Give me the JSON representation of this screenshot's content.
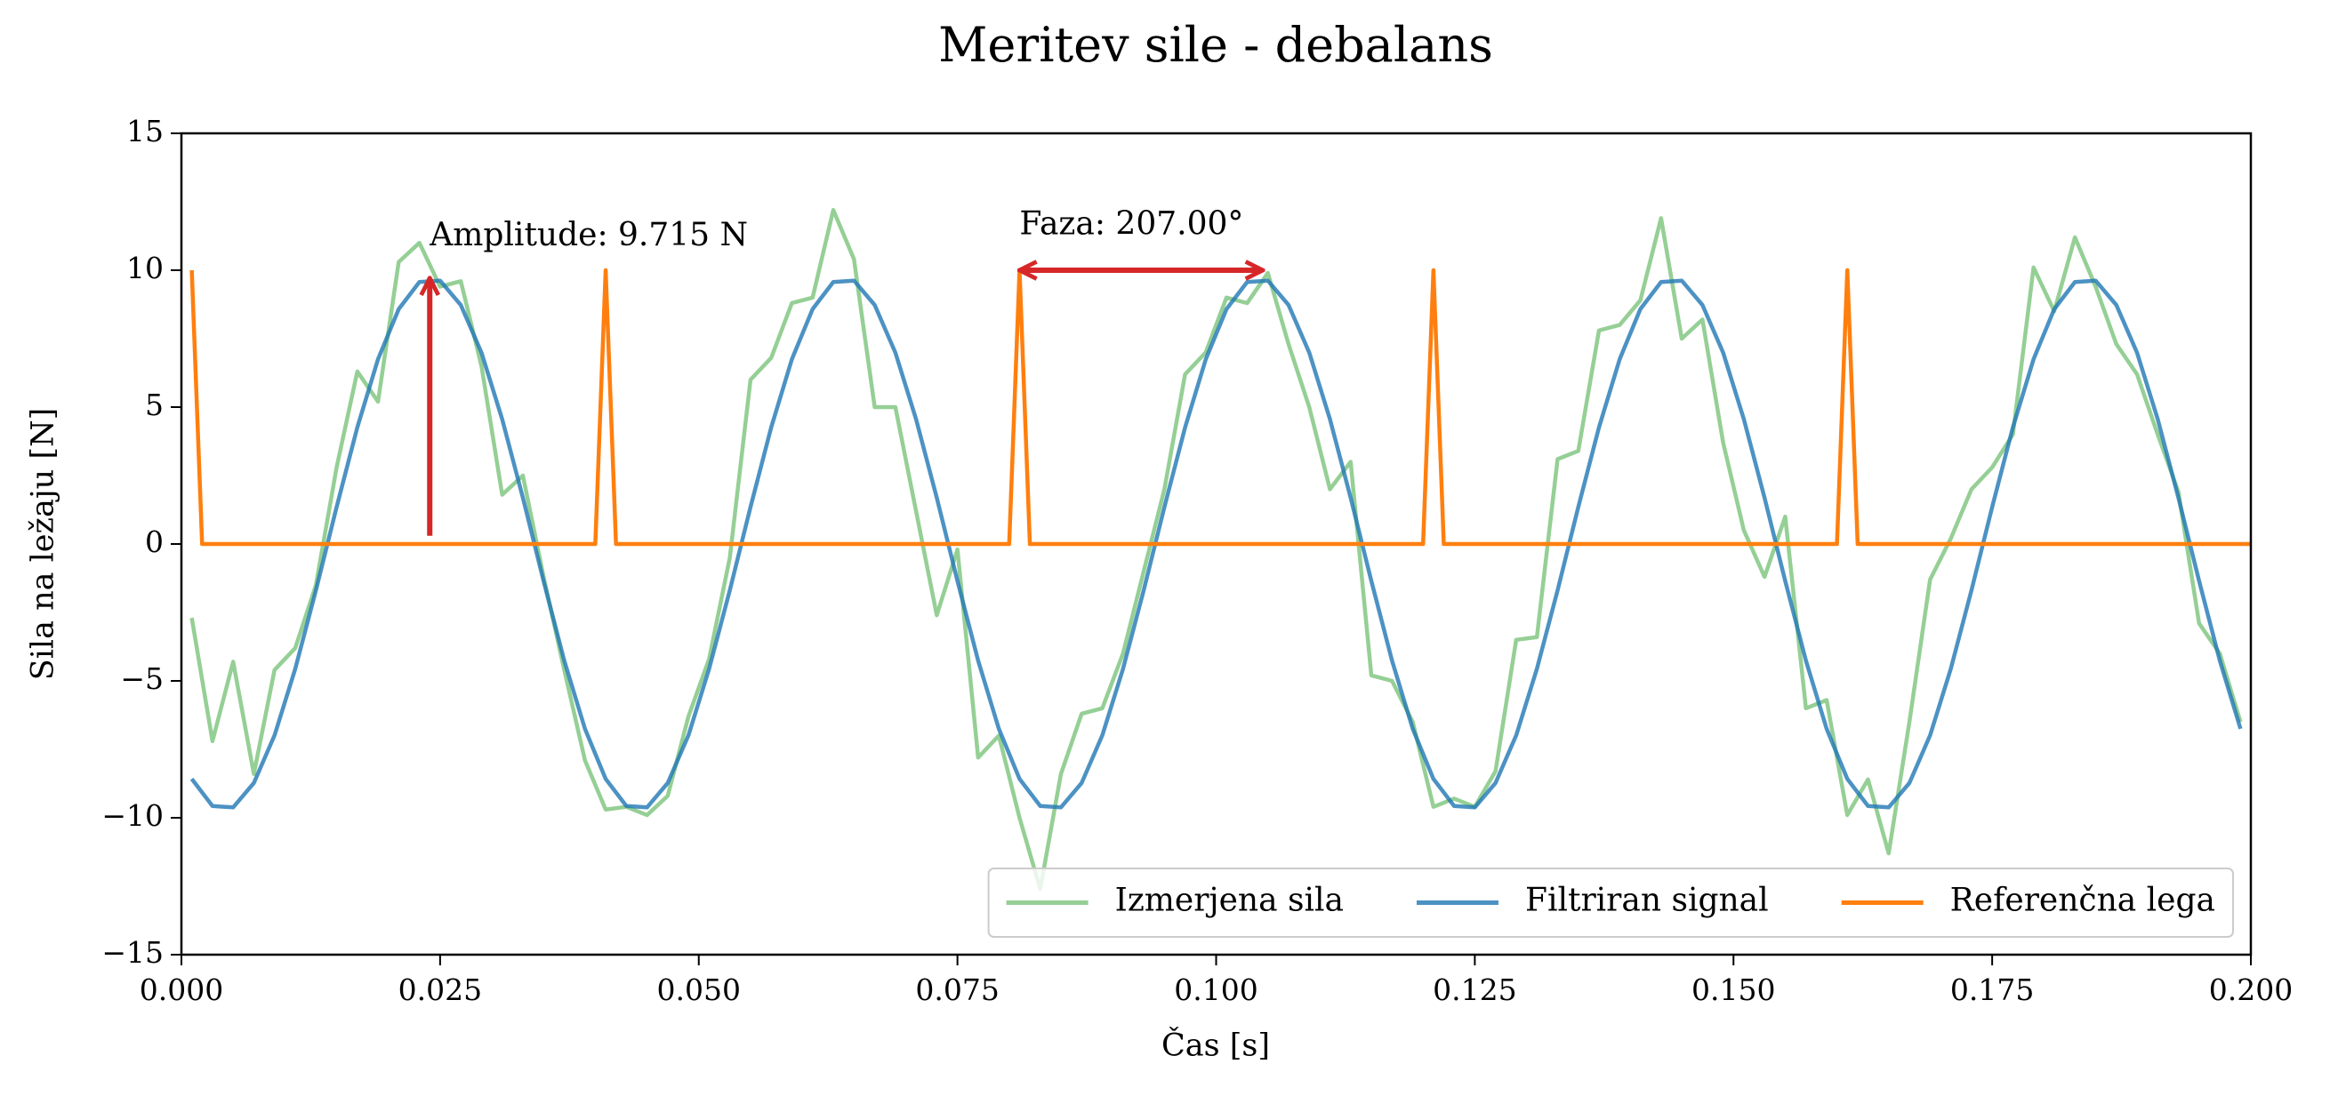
{
  "chart_data": {
    "type": "line",
    "title": "Meritev sile - debalans",
    "xlabel": "Čas [s]",
    "ylabel": "Sila na ležaju [N]",
    "xlim": [
      0,
      0.2
    ],
    "ylim": [
      -15,
      15
    ],
    "xticks": [
      {
        "value": 0,
        "label": "0.000"
      },
      {
        "value": 0.025,
        "label": "0.025"
      },
      {
        "value": 0.05,
        "label": "0.050"
      },
      {
        "value": 0.075,
        "label": "0.075"
      },
      {
        "value": 0.1,
        "label": "0.100"
      },
      {
        "value": 0.125,
        "label": "0.125"
      },
      {
        "value": 0.15,
        "label": "0.150"
      },
      {
        "value": 0.175,
        "label": "0.175"
      },
      {
        "value": 0.2,
        "label": "0.200"
      }
    ],
    "yticks": [
      {
        "value": -15,
        "label": "−15"
      },
      {
        "value": -10,
        "label": "−10"
      },
      {
        "value": -5,
        "label": "−5"
      },
      0,
      5,
      10,
      15
    ],
    "legend": "lower right",
    "x": [
      0.001,
      0.003,
      0.005,
      0.007,
      0.009,
      0.011,
      0.013,
      0.015,
      0.017,
      0.019,
      0.021,
      0.023,
      0.025,
      0.027,
      0.029,
      0.031,
      0.033,
      0.035,
      0.037,
      0.039,
      0.041,
      0.043,
      0.045,
      0.047,
      0.049,
      0.051,
      0.053,
      0.055,
      0.057,
      0.059,
      0.061,
      0.063,
      0.065,
      0.067,
      0.069,
      0.071,
      0.073,
      0.075,
      0.077,
      0.079,
      0.081,
      0.083,
      0.085,
      0.087,
      0.089,
      0.091,
      0.093,
      0.095,
      0.097,
      0.099,
      0.101,
      0.103,
      0.105,
      0.107,
      0.109,
      0.111,
      0.113,
      0.115,
      0.117,
      0.119,
      0.121,
      0.123,
      0.125,
      0.127,
      0.129,
      0.131,
      0.133,
      0.135,
      0.137,
      0.139,
      0.141,
      0.143,
      0.145,
      0.147,
      0.149,
      0.151,
      0.153,
      0.155,
      0.157,
      0.159,
      0.161,
      0.163,
      0.165,
      0.167,
      0.169,
      0.171,
      0.173,
      0.175,
      0.177,
      0.179,
      0.181,
      0.183,
      0.185,
      0.187,
      0.189,
      0.191,
      0.193,
      0.195,
      0.197,
      0.199
    ],
    "series": [
      {
        "name": "Izmerjena sila",
        "color": "#2ca02c",
        "alpha": 0.5,
        "values": [
          -2.7,
          -7.2,
          -4.3,
          -8.4,
          -4.6,
          -3.8,
          -1.5,
          2.8,
          6.3,
          5.2,
          10.3,
          11.0,
          9.4,
          9.6,
          6.5,
          1.8,
          2.5,
          -1.2,
          -4.6,
          -7.9,
          -9.7,
          -9.6,
          -9.9,
          -9.2,
          -6.3,
          -4.2,
          -0.5,
          6.0,
          6.8,
          8.8,
          9.0,
          12.2,
          10.4,
          5.0,
          5.0,
          1.2,
          -2.6,
          -0.2,
          -7.8,
          -7.0,
          -10.0,
          -12.6,
          -8.4,
          -6.2,
          -6.0,
          -4.0,
          -1.0,
          2.0,
          6.2,
          7.0,
          9.0,
          8.8,
          9.9,
          7.3,
          5.0,
          2.0,
          3.0,
          -4.8,
          -5.0,
          -6.5,
          -9.6,
          -9.3,
          -9.6,
          -8.3,
          -3.5,
          -3.4,
          3.1,
          3.4,
          7.8,
          8.0,
          8.9,
          11.9,
          7.5,
          8.2,
          3.7,
          0.5,
          -1.2,
          1.0,
          -6.0,
          -5.7,
          -9.9,
          -8.6,
          -11.3,
          -6.5,
          -1.3,
          0.2,
          2.0,
          2.8,
          4.0,
          10.1,
          8.5,
          11.2,
          9.4,
          7.3,
          6.2,
          4.0,
          1.9,
          -2.9,
          -4.0,
          -6.5
        ]
      },
      {
        "name": "Filtriran signal",
        "color": "#1f77b4",
        "alpha": 0.8,
        "values": [
          -8.58,
          -9.57,
          -9.62,
          -8.73,
          -6.99,
          -4.56,
          -1.69,
          1.35,
          4.26,
          6.75,
          8.58,
          9.57,
          9.62,
          8.73,
          6.99,
          4.56,
          1.69,
          -1.35,
          -4.26,
          -6.75,
          -8.58,
          -9.57,
          -9.62,
          -8.73,
          -6.99,
          -4.56,
          -1.69,
          1.35,
          4.26,
          6.75,
          8.58,
          9.57,
          9.62,
          8.73,
          6.99,
          4.56,
          1.69,
          -1.35,
          -4.26,
          -6.75,
          -8.58,
          -9.57,
          -9.62,
          -8.73,
          -6.99,
          -4.56,
          -1.69,
          1.35,
          4.26,
          6.75,
          8.58,
          9.57,
          9.62,
          8.73,
          6.99,
          4.56,
          1.69,
          -1.35,
          -4.26,
          -6.75,
          -8.58,
          -9.57,
          -9.62,
          -8.73,
          -6.99,
          -4.56,
          -1.69,
          1.35,
          4.26,
          6.75,
          8.58,
          9.57,
          9.62,
          8.73,
          6.99,
          4.56,
          1.69,
          -1.35,
          -4.26,
          -6.75,
          -8.58,
          -9.57,
          -9.62,
          -8.73,
          -6.99,
          -4.56,
          -1.69,
          1.35,
          4.26,
          6.75,
          8.58,
          9.57,
          9.62,
          8.73,
          6.99,
          4.56,
          1.69,
          -1.35,
          -4.26,
          -6.75
        ]
      },
      {
        "name": "Referenčna lega",
        "color": "#ff7f0e",
        "alpha": 1,
        "x": [
          0.001,
          0.002,
          0.04,
          0.041,
          0.042,
          0.08,
          0.081,
          0.082,
          0.12,
          0.121,
          0.122,
          0.16,
          0.161,
          0.162,
          0.2
        ],
        "values": [
          10,
          0,
          0,
          10,
          0,
          0,
          10,
          0,
          0,
          10,
          0,
          0,
          10,
          0,
          0
        ]
      }
    ],
    "annotations": [
      {
        "text": "Amplitude: 9.715 N",
        "x": 0.024,
        "y": 11.2,
        "arrow": {
          "x1": 0.024,
          "y1": 0.3,
          "x2": 0.024,
          "y2": 9.715
        }
      },
      {
        "text": "Faza: 207.00°",
        "x": 0.081,
        "y": 11.6,
        "arrow": {
          "x1": 0.081,
          "y1": 10,
          "x2": 0.1045,
          "y2": 10,
          "both": true
        }
      }
    ],
    "annotation_color": "#d62728"
  }
}
